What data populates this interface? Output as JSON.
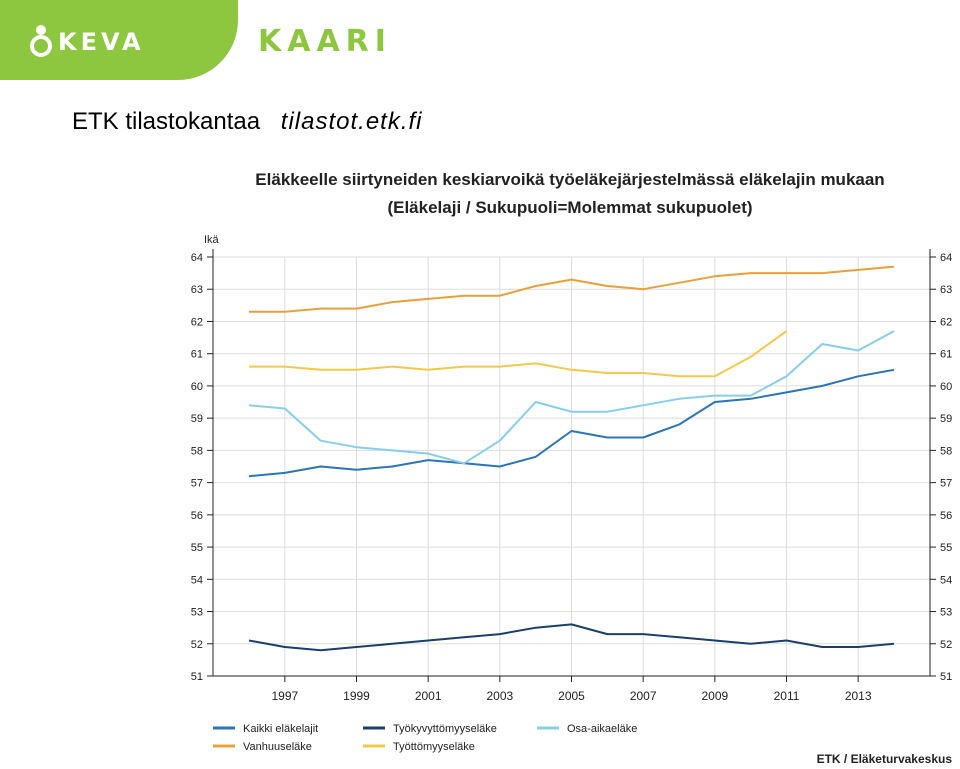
{
  "header": {
    "keva_logo_text": "KEVA",
    "kaari_logo_text": "KAARI",
    "source_label": "ETK tilastokantaa",
    "source_url": "tilastot.etk.fi"
  },
  "footer": {
    "credit": "ETK / Eläketurvakeskus"
  },
  "chart_data": {
    "type": "line",
    "title": "Eläkkeelle siirtyneiden keskiarvoikä työeläkejärjestelmässä eläkelajin mukaan",
    "subtitle": "(Eläkelaji / Sukupuoli=Molemmat sukupuolet)",
    "ylabel": "Ikä",
    "ylim": [
      51,
      64
    ],
    "xlim": [
      1996,
      2014
    ],
    "x_tick_labels": [
      "1997",
      "1999",
      "2001",
      "2003",
      "2005",
      "2007",
      "2009",
      "2011",
      "2013"
    ],
    "y_tick_labels": [
      "64",
      "63",
      "62",
      "61",
      "60",
      "59",
      "58",
      "57",
      "56",
      "55",
      "54",
      "53",
      "52",
      "51"
    ],
    "grid": true,
    "legend_position": "bottom",
    "series": [
      {
        "name": "Kaikki eläkelajit",
        "color": "#2e75b6",
        "x": [
          1996,
          1997,
          1998,
          1999,
          2000,
          2001,
          2002,
          2003,
          2004,
          2005,
          2006,
          2007,
          2008,
          2009,
          2010,
          2011,
          2012,
          2013,
          2014
        ],
        "values": [
          57.2,
          57.3,
          57.5,
          57.4,
          57.5,
          57.7,
          57.6,
          57.5,
          57.8,
          58.6,
          58.4,
          58.4,
          58.8,
          59.5,
          59.6,
          59.8,
          60.0,
          60.3,
          60.5
        ]
      },
      {
        "name": "Työkyvyttömyyseläke",
        "color": "#1a3f6b",
        "x": [
          1996,
          1997,
          1998,
          1999,
          2000,
          2001,
          2002,
          2003,
          2004,
          2005,
          2006,
          2007,
          2008,
          2009,
          2010,
          2011,
          2012,
          2013,
          2014
        ],
        "values": [
          52.1,
          51.9,
          51.8,
          51.9,
          52.0,
          52.1,
          52.2,
          52.3,
          52.5,
          52.6,
          52.3,
          52.3,
          52.2,
          52.1,
          52.0,
          52.1,
          51.9,
          51.9,
          52.0
        ]
      },
      {
        "name": "Osa-aikaeläke",
        "color": "#87ceeb",
        "x": [
          1996,
          1997,
          1998,
          1999,
          2000,
          2001,
          2002,
          2003,
          2004,
          2005,
          2006,
          2007,
          2008,
          2009,
          2010,
          2011,
          2012,
          2013,
          2014
        ],
        "values": [
          59.4,
          59.3,
          58.3,
          58.1,
          58.0,
          57.9,
          57.6,
          58.3,
          59.5,
          59.2,
          59.2,
          59.4,
          59.6,
          59.7,
          59.7,
          60.3,
          61.3,
          61.1,
          61.7
        ]
      },
      {
        "name": "Vanhuuseläke",
        "color": "#e8a13a",
        "x": [
          1996,
          1997,
          1998,
          1999,
          2000,
          2001,
          2002,
          2003,
          2004,
          2005,
          2006,
          2007,
          2008,
          2009,
          2010,
          2011,
          2012,
          2013,
          2014
        ],
        "values": [
          62.3,
          62.3,
          62.4,
          62.4,
          62.6,
          62.7,
          62.8,
          62.8,
          63.1,
          63.3,
          63.1,
          63.0,
          63.2,
          63.4,
          63.5,
          63.5,
          63.5,
          63.6,
          63.7
        ]
      },
      {
        "name": "Työttömyyseläke",
        "color": "#f2c94c",
        "x": [
          1996,
          1997,
          1998,
          1999,
          2000,
          2001,
          2002,
          2003,
          2004,
          2005,
          2006,
          2007,
          2008,
          2009,
          2010,
          2011
        ],
        "values": [
          60.6,
          60.6,
          60.5,
          60.5,
          60.6,
          60.5,
          60.6,
          60.6,
          60.7,
          60.5,
          60.4,
          60.4,
          60.3,
          60.3,
          60.9,
          61.7
        ]
      }
    ]
  }
}
